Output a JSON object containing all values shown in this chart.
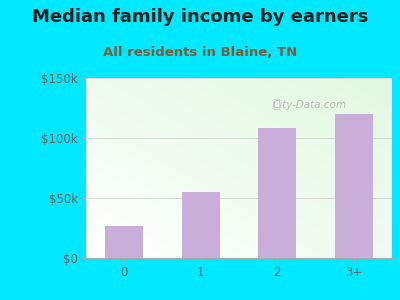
{
  "title": "Median family income by earners",
  "subtitle": "All residents in Blaine, TN",
  "categories": [
    "0",
    "1",
    "2",
    "3+"
  ],
  "values": [
    27000,
    55000,
    108000,
    120000
  ],
  "bar_color": "#c8aed8",
  "background_outer": "#00e8ff",
  "title_color": "#222222",
  "subtitle_color": "#7a5c3a",
  "axis_label_color": "#666666",
  "ytick_labels": [
    "$0",
    "$50k",
    "$100k",
    "$150k"
  ],
  "ytick_values": [
    0,
    50000,
    100000,
    150000
  ],
  "ylim": [
    0,
    150000
  ],
  "watermark": "City-Data.com",
  "title_fontsize": 13,
  "subtitle_fontsize": 9.5,
  "tick_fontsize": 8.5
}
